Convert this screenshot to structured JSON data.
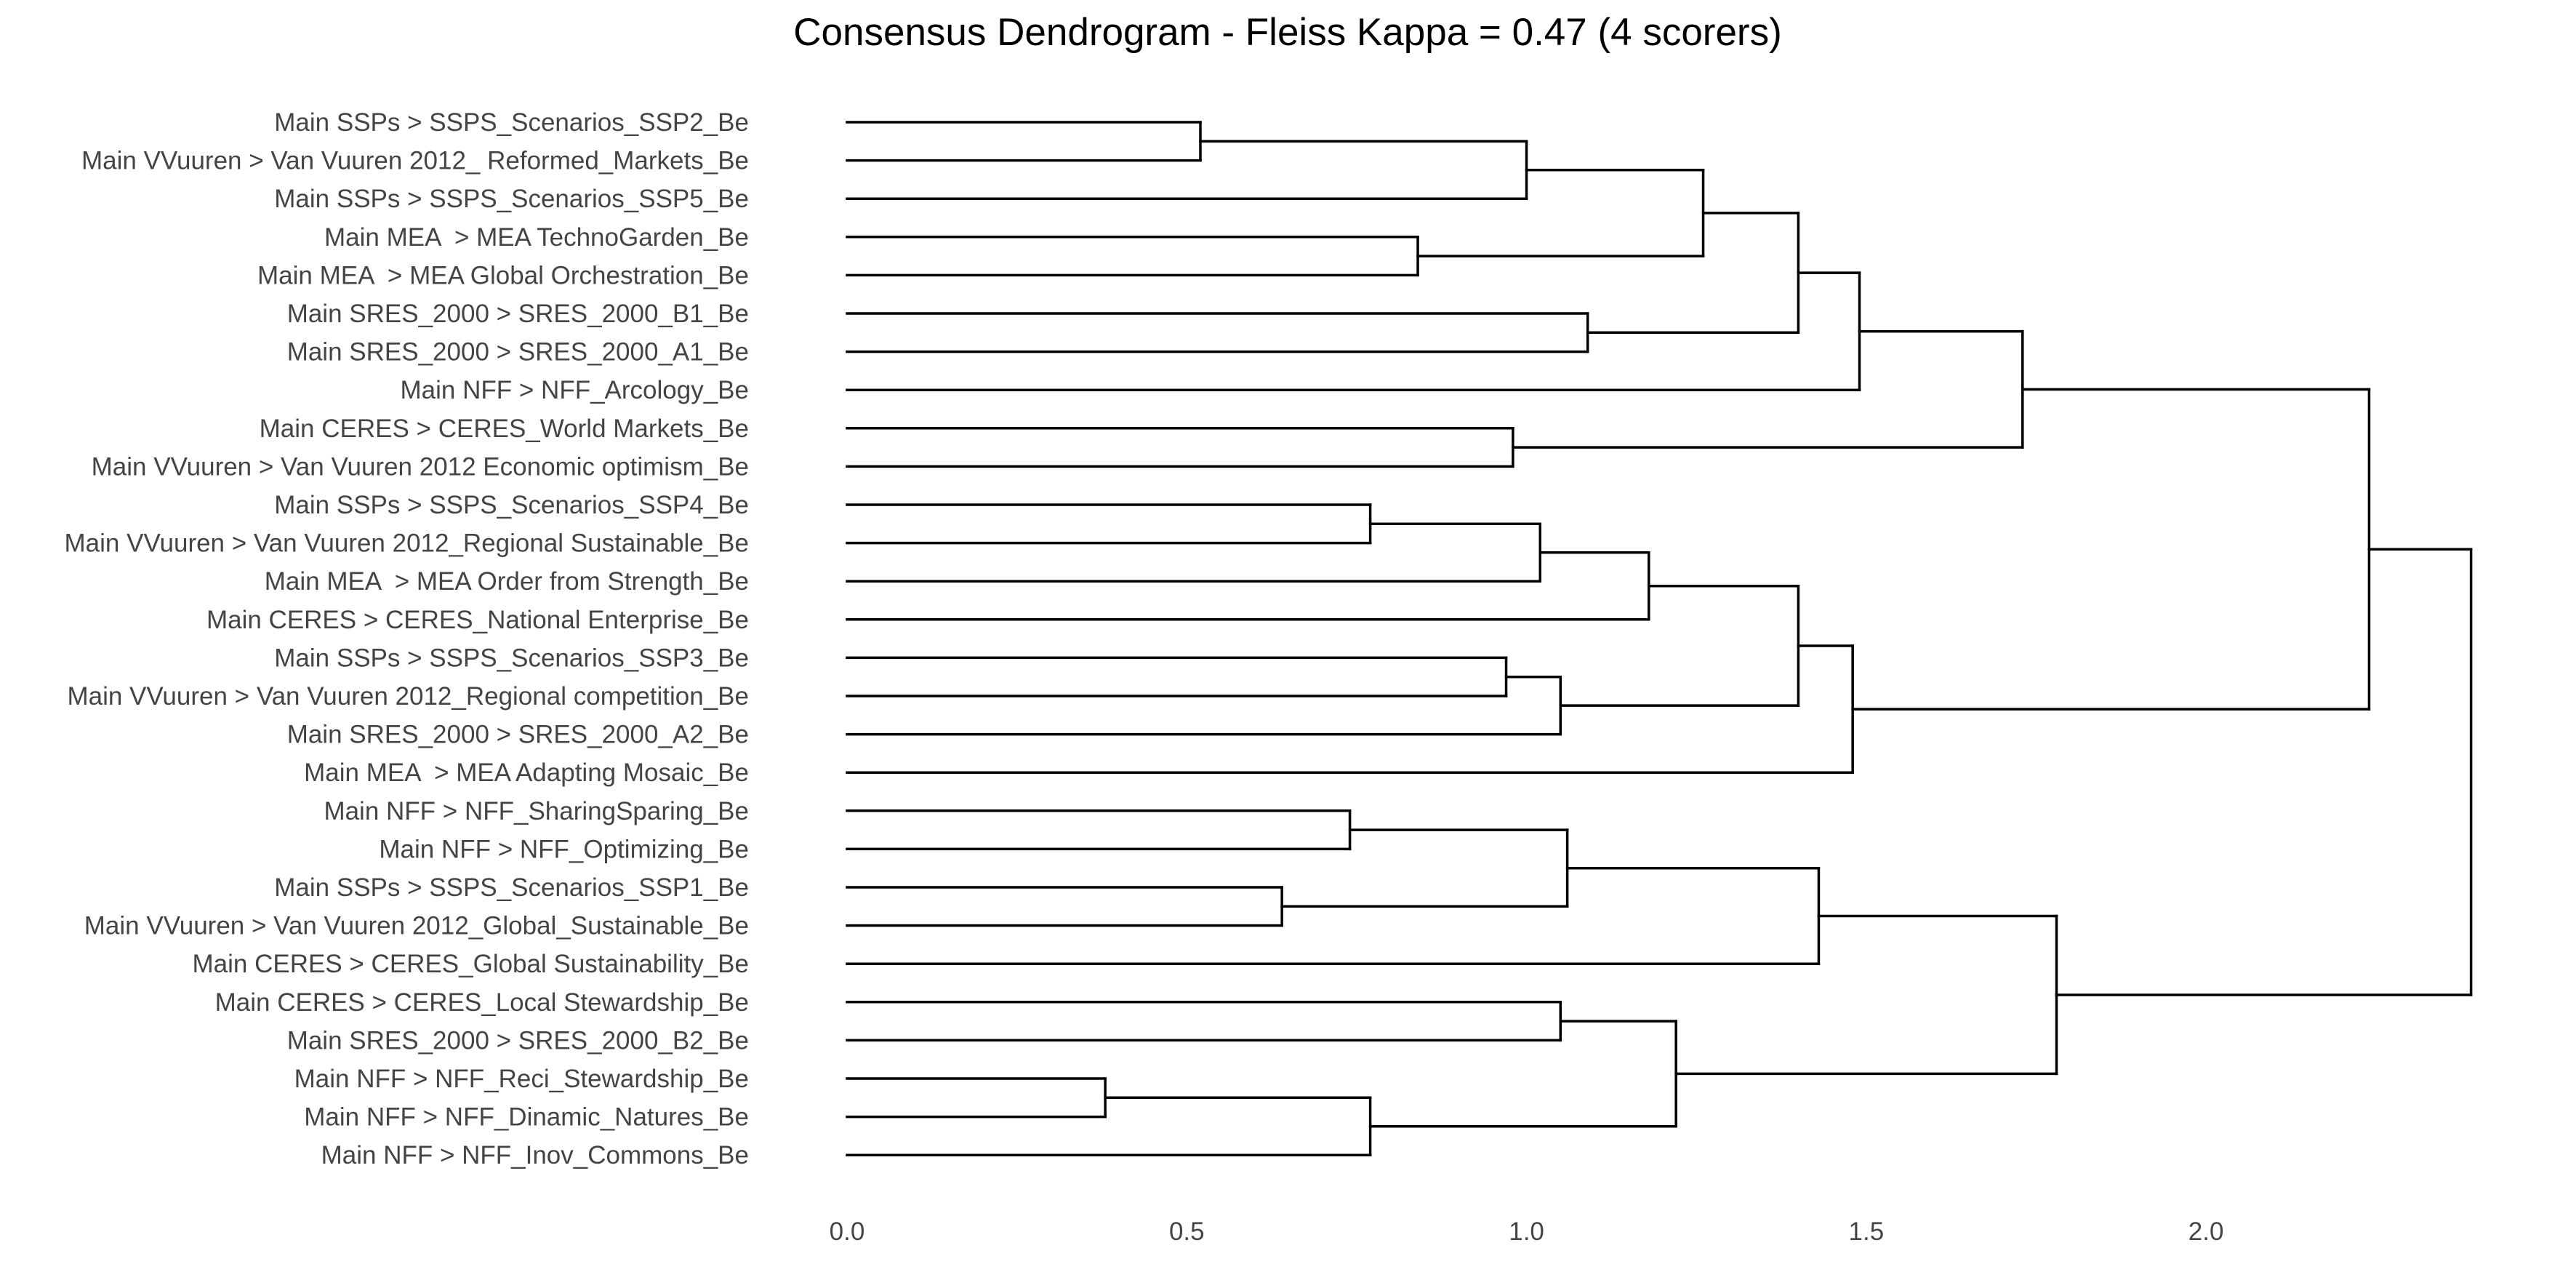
{
  "chart_data": {
    "type": "dendrogram",
    "title": "Consensus Dendrogram - Fleiss Kappa = 0.47 (4 scorers)",
    "xlabel": "",
    "ylabel": "",
    "xlim": [
      0,
      2.43
    ],
    "x_ticks": [
      "0.0",
      "0.5",
      "1.0",
      "1.5",
      "2.0"
    ],
    "x_tick_values": [
      0,
      0.5,
      1.0,
      1.5,
      2.0
    ],
    "grid": false,
    "leaves": [
      "Main SSPs > SSPS_Scenarios_SSP2_Be",
      "Main VVuuren > Van Vuuren 2012_ Reformed_Markets_Be",
      "Main SSPs > SSPS_Scenarios_SSP5_Be",
      "Main MEA  > MEA TechnoGarden_Be",
      "Main MEA  > MEA Global Orchestration_Be",
      "Main SRES_2000 > SRES_2000_B1_Be",
      "Main SRES_2000 > SRES_2000_A1_Be",
      "Main NFF > NFF_Arcology_Be",
      "Main CERES > CERES_World Markets_Be",
      "Main VVuuren > Van Vuuren 2012 Economic optimism_Be",
      "Main SSPs > SSPS_Scenarios_SSP4_Be",
      "Main VVuuren > Van Vuuren 2012_Regional Sustainable_Be",
      "Main MEA  > MEA Order from Strength_Be",
      "Main CERES > CERES_National Enterprise_Be",
      "Main SSPs > SSPS_Scenarios_SSP3_Be",
      "Main VVuuren > Van Vuuren 2012_Regional competition_Be",
      "Main SRES_2000 > SRES_2000_A2_Be",
      "Main MEA  > MEA Adapting Mosaic_Be",
      "Main NFF > NFF_SharingSparing_Be",
      "Main NFF > NFF_Optimizing_Be",
      "Main SSPs > SSPS_Scenarios_SSP1_Be",
      "Main VVuuren > Van Vuuren 2012_Global_Sustainable_Be",
      "Main CERES > CERES_Global Sustainability_Be",
      "Main CERES > CERES_Local Stewardship_Be",
      "Main SRES_2000 > SRES_2000_B2_Be",
      "Main NFF > NFF_Reci_Stewardship_Be",
      "Main NFF > NFF_Dinamic_Natures_Be",
      "Main NFF > NFF_Inov_Commons_Be"
    ],
    "merges": [
      {
        "id": "m1",
        "children": [
          "L0",
          "L1"
        ],
        "height": 0.52
      },
      {
        "id": "m2",
        "children": [
          "m1",
          "L2"
        ],
        "height": 1.0
      },
      {
        "id": "m3",
        "children": [
          "L3",
          "L4"
        ],
        "height": 0.84
      },
      {
        "id": "m4",
        "children": [
          "m2",
          "m3"
        ],
        "height": 1.26
      },
      {
        "id": "m5",
        "children": [
          "L5",
          "L6"
        ],
        "height": 1.09
      },
      {
        "id": "m6",
        "children": [
          "m4",
          "m5"
        ],
        "height": 1.4
      },
      {
        "id": "m7",
        "children": [
          "m6",
          "L7"
        ],
        "height": 1.49
      },
      {
        "id": "m8",
        "children": [
          "L8",
          "L9"
        ],
        "height": 0.98
      },
      {
        "id": "m9",
        "children": [
          "m7",
          "m8"
        ],
        "height": 1.73
      },
      {
        "id": "m10",
        "children": [
          "L10",
          "L11"
        ],
        "height": 0.77
      },
      {
        "id": "m11",
        "children": [
          "m10",
          "L12"
        ],
        "height": 1.02
      },
      {
        "id": "m12",
        "children": [
          "m11",
          "L13"
        ],
        "height": 1.18
      },
      {
        "id": "m13",
        "children": [
          "L14",
          "L15"
        ],
        "height": 0.97
      },
      {
        "id": "m14",
        "children": [
          "m13",
          "L16"
        ],
        "height": 1.05
      },
      {
        "id": "m15",
        "children": [
          "m12",
          "m14"
        ],
        "height": 1.4
      },
      {
        "id": "m16",
        "children": [
          "m15",
          "L17"
        ],
        "height": 1.48
      },
      {
        "id": "m17",
        "children": [
          "m9",
          "m16"
        ],
        "height": 2.24
      },
      {
        "id": "m18",
        "children": [
          "L18",
          "L19"
        ],
        "height": 0.74
      },
      {
        "id": "m19",
        "children": [
          "L20",
          "L21"
        ],
        "height": 0.64
      },
      {
        "id": "m20",
        "children": [
          "m18",
          "m19"
        ],
        "height": 1.06
      },
      {
        "id": "m21",
        "children": [
          "m20",
          "L22"
        ],
        "height": 1.43
      },
      {
        "id": "m22",
        "children": [
          "L23",
          "L24"
        ],
        "height": 1.05
      },
      {
        "id": "m23",
        "children": [
          "L25",
          "L26"
        ],
        "height": 0.38
      },
      {
        "id": "m24",
        "children": [
          "m23",
          "L27"
        ],
        "height": 0.77
      },
      {
        "id": "m25",
        "children": [
          "m22",
          "m24"
        ],
        "height": 1.22
      },
      {
        "id": "m26",
        "children": [
          "m21",
          "m25"
        ],
        "height": 1.78
      },
      {
        "id": "m27",
        "children": [
          "m17",
          "m26"
        ],
        "height": 2.39
      }
    ]
  }
}
